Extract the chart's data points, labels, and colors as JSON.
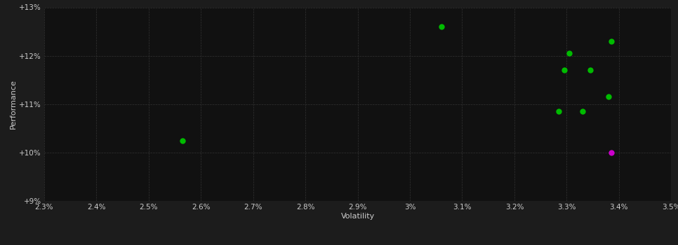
{
  "scatter_points_green": [
    [
      3.06,
      12.6
    ],
    [
      3.385,
      12.3
    ],
    [
      3.305,
      12.05
    ],
    [
      3.295,
      11.7
    ],
    [
      3.345,
      11.7
    ],
    [
      3.38,
      11.15
    ],
    [
      3.285,
      10.85
    ],
    [
      3.33,
      10.85
    ],
    [
      2.565,
      10.25
    ]
  ],
  "scatter_point_magenta": [
    [
      3.385,
      10.0
    ]
  ],
  "x_min": 2.3,
  "x_max": 3.5,
  "y_min": 9.0,
  "y_max": 13.0,
  "x_ticks": [
    2.3,
    2.4,
    2.5,
    2.6,
    2.7,
    2.8,
    2.9,
    3.0,
    3.1,
    3.2,
    3.3,
    3.4,
    3.5
  ],
  "x_tick_labels": [
    "2.3%",
    "2.4%",
    "2.5%",
    "2.6%",
    "2.7%",
    "2.8%",
    "2.9%",
    "3%",
    "3.1%",
    "3.2%",
    "3.3%",
    "3.4%",
    "3.5%"
  ],
  "y_ticks": [
    9.0,
    10.0,
    11.0,
    12.0,
    13.0
  ],
  "y_tick_labels": [
    "+9%",
    "+10%",
    "+11%",
    "+12%",
    "+13%"
  ],
  "xlabel": "Volatility",
  "ylabel": "Performance",
  "bg_color": "#1c1c1c",
  "plot_bg_color": "#111111",
  "grid_color": "#333333",
  "text_color": "#cccccc",
  "green_color": "#00bb00",
  "magenta_color": "#cc00cc",
  "marker_size": 6
}
